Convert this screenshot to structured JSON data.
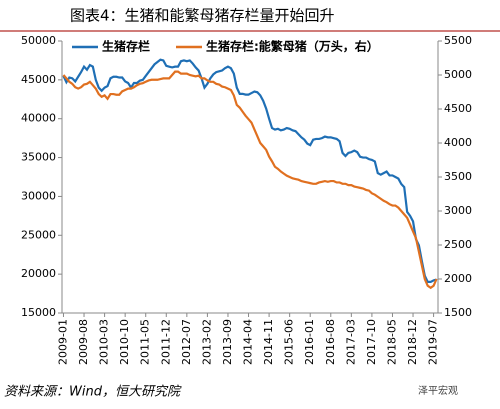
{
  "chart_data": {
    "type": "line",
    "title": "图表4：生猪和能繁母猪存栏量开始回升",
    "source": "资料来源：Wind，恒大研究院",
    "watermark": "泽平宏观",
    "categories": [
      "2009-01",
      null,
      null,
      null,
      null,
      null,
      null,
      "2009-08",
      null,
      null,
      null,
      null,
      null,
      null,
      "2010-03",
      null,
      null,
      null,
      null,
      null,
      null,
      "2010-10",
      null,
      null,
      null,
      null,
      null,
      null,
      "2011-05",
      null,
      null,
      null,
      null,
      null,
      null,
      "2011-12",
      null,
      null,
      null,
      null,
      null,
      null,
      "2012-07",
      null,
      null,
      null,
      null,
      null,
      null,
      "2013-02",
      null,
      null,
      null,
      null,
      null,
      null,
      "2013-09",
      null,
      null,
      null,
      null,
      null,
      null,
      "2014-04",
      null,
      null,
      null,
      null,
      null,
      null,
      "2014-11",
      null,
      null,
      null,
      null,
      null,
      null,
      "2015-06",
      null,
      null,
      null,
      null,
      null,
      null,
      "2016-01",
      null,
      null,
      null,
      null,
      null,
      null,
      "2016-08",
      null,
      null,
      null,
      null,
      null,
      null,
      "2017-03",
      null,
      null,
      null,
      null,
      null,
      null,
      "2017-10",
      null,
      null,
      null,
      null,
      null,
      null,
      "2018-05",
      null,
      null,
      null,
      null,
      null,
      null,
      "2018-12",
      null,
      null,
      null,
      null,
      null,
      null,
      "2019-07",
      null
    ],
    "series": [
      {
        "name": "生猪存栏",
        "color": "#1f6fb5",
        "values": [
          45500,
          44700,
          45300,
          45200,
          44800,
          45400,
          46000,
          46700,
          46300,
          46900,
          46700,
          45000,
          44000,
          43600,
          44000,
          44200,
          45200,
          45400,
          45400,
          45300,
          45300,
          44800,
          44600,
          44000,
          44600,
          44600,
          44900,
          45000,
          45500,
          46000,
          46500,
          47000,
          47300,
          47600,
          47500,
          46800,
          46700,
          46600,
          46700,
          46700,
          47400,
          47500,
          47400,
          47500,
          47100,
          46600,
          46200,
          45200,
          44000,
          44500,
          45200,
          45700,
          46000,
          46100,
          46200,
          46500,
          46700,
          46500,
          45800,
          44000,
          43200,
          43200,
          43100,
          43100,
          43300,
          43500,
          43400,
          43000,
          42300,
          41300,
          40000,
          38800,
          38600,
          38700,
          38500,
          38600,
          38800,
          38700,
          38500,
          38400,
          38000,
          37600,
          37300,
          36800,
          36600,
          37300,
          37400,
          37400,
          37500,
          37700,
          37600,
          37600,
          37500,
          37400,
          37100,
          35600,
          35200,
          35600,
          35700,
          35900,
          35700,
          35100,
          35000,
          35000,
          34800,
          34700,
          34500,
          33000,
          32800,
          33000,
          33200,
          32700,
          32700,
          32500,
          32300,
          31600,
          31200,
          28000,
          27500,
          26800,
          24500,
          23700,
          21700,
          19800,
          19000,
          19000,
          19200,
          19300
        ]
      },
      {
        "name": "生猪存栏:能繁母猪（万头，右）",
        "color": "#e07020",
        "axis": "y2",
        "values": [
          5000,
          4950,
          4900,
          4870,
          4820,
          4800,
          4820,
          4860,
          4870,
          4900,
          4850,
          4800,
          4720,
          4680,
          4700,
          4650,
          4720,
          4720,
          4710,
          4710,
          4760,
          4780,
          4800,
          4800,
          4820,
          4850,
          4870,
          4880,
          4900,
          4920,
          4930,
          4930,
          4930,
          4940,
          4950,
          4950,
          4950,
          5000,
          5050,
          5050,
          5020,
          5020,
          5020,
          5000,
          4990,
          4980,
          4990,
          4950,
          4950,
          4920,
          4900,
          4900,
          4870,
          4860,
          4830,
          4820,
          4800,
          4780,
          4700,
          4560,
          4520,
          4460,
          4400,
          4350,
          4300,
          4200,
          4100,
          4000,
          3950,
          3900,
          3800,
          3730,
          3650,
          3620,
          3580,
          3550,
          3520,
          3500,
          3480,
          3470,
          3460,
          3440,
          3430,
          3420,
          3410,
          3400,
          3400,
          3420,
          3430,
          3440,
          3430,
          3440,
          3440,
          3420,
          3420,
          3400,
          3400,
          3380,
          3380,
          3360,
          3350,
          3340,
          3330,
          3310,
          3300,
          3260,
          3240,
          3210,
          3180,
          3150,
          3130,
          3100,
          3080,
          3080,
          3050,
          3000,
          2950,
          2900,
          2800,
          2700,
          2600,
          2400,
          2200,
          2000,
          1900,
          1870,
          1900,
          2000
        ]
      }
    ],
    "ylim": [
      15000,
      50000
    ],
    "yticks": [
      15000,
      20000,
      25000,
      30000,
      35000,
      40000,
      45000,
      50000
    ],
    "y2lim": [
      1500,
      5500
    ],
    "y2ticks": [
      1500,
      2000,
      2500,
      3000,
      3500,
      4000,
      4500,
      5000,
      5500
    ],
    "grid": false
  }
}
